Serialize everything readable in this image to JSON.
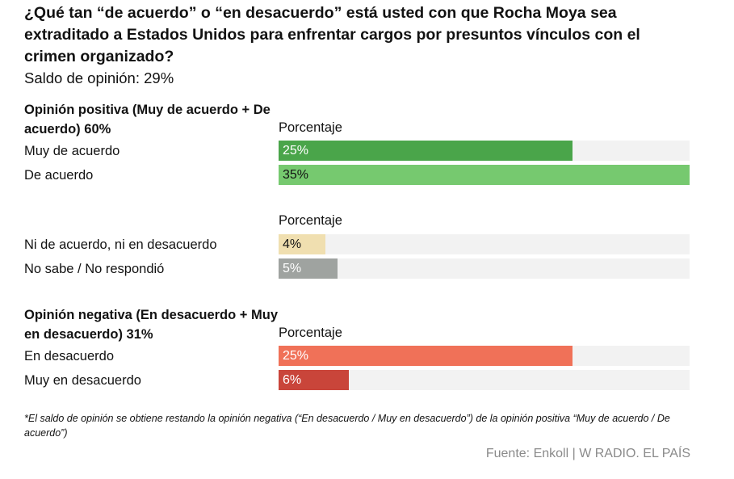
{
  "title": "¿Qué tan “de acuerdo” o “en desacuerdo” está usted con que Rocha Moya sea extraditado a Estados Unidos para enfrentar cargos por presuntos vínculos con el crimen organizado?",
  "subtitle": "Saldo de opinión: 29%",
  "chart_data": {
    "type": "bar",
    "orientation": "horizontal",
    "xlim": [
      0,
      35
    ],
    "groups": [
      {
        "title": "Opinión positiva (Muy de acuerdo + De acuerdo) 60%",
        "column_header": "Porcentaje",
        "categories": [
          "Muy de acuerdo",
          "De acuerdo"
        ],
        "values": [
          25,
          35
        ],
        "value_labels": [
          "25%",
          "35%"
        ],
        "colors": [
          "#4aa54a",
          "#76c96f"
        ]
      },
      {
        "title": "",
        "column_header": "Porcentaje",
        "categories": [
          "Ni de acuerdo, ni en desacuerdo",
          "No sabe / No respondió"
        ],
        "values": [
          4,
          5
        ],
        "value_labels": [
          "4%",
          "5%"
        ],
        "colors": [
          "#f0dfb0",
          "#9fa3a0"
        ]
      },
      {
        "title": "Opinión negativa (En desacuerdo + Muy en desacuerdo) 31%",
        "column_header": "Porcentaje",
        "categories": [
          "En desacuerdo",
          "Muy en desacuerdo"
        ],
        "values": [
          25,
          6
        ],
        "value_labels": [
          "25%",
          "6%"
        ],
        "colors": [
          "#f07158",
          "#c9453a"
        ]
      }
    ]
  },
  "footnote": "*El saldo de opinión se obtiene restando la opinión negativa (“En desacuerdo / Muy en desacuerdo”) de la opinión positiva “Muy de acuerdo / De acuerdo”)",
  "source": "Fuente: Enkoll | W RADIO. EL PAÍS"
}
